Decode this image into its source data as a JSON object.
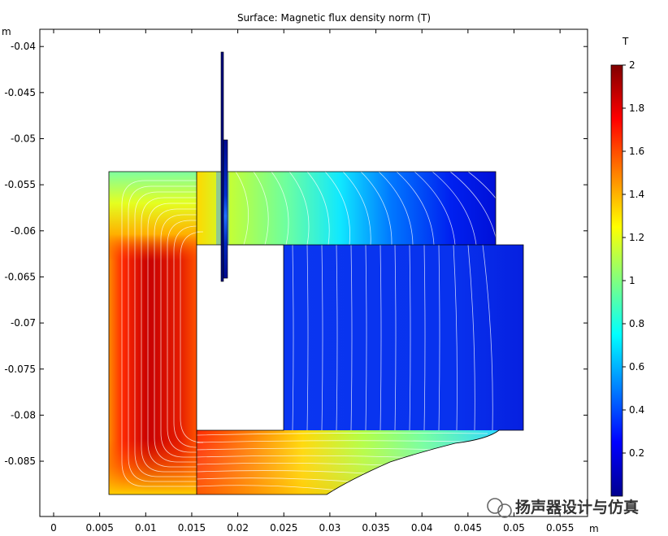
{
  "chart_data": {
    "type": "heatmap",
    "title": "Surface: Magnetic flux density norm (T)",
    "x_unit": "m",
    "y_unit": "m",
    "xlim": [
      -0.0015,
      0.058
    ],
    "ylim": [
      -0.0895,
      -0.0365
    ],
    "x_ticks": [
      {
        "value": 0,
        "label": "0"
      },
      {
        "value": 0.005,
        "label": "0.005"
      },
      {
        "value": 0.01,
        "label": "0.01"
      },
      {
        "value": 0.015,
        "label": "0.015"
      },
      {
        "value": 0.02,
        "label": "0.02"
      },
      {
        "value": 0.025,
        "label": "0.025"
      },
      {
        "value": 0.03,
        "label": "0.03"
      },
      {
        "value": 0.035,
        "label": "0.035"
      },
      {
        "value": 0.04,
        "label": "0.04"
      },
      {
        "value": 0.045,
        "label": "0.045"
      },
      {
        "value": 0.05,
        "label": "0.05"
      },
      {
        "value": 0.055,
        "label": "0.055"
      }
    ],
    "y_ticks": [
      {
        "value": -0.04,
        "label": "-0.04"
      },
      {
        "value": -0.045,
        "label": "-0.045"
      },
      {
        "value": -0.05,
        "label": "-0.05"
      },
      {
        "value": -0.055,
        "label": "-0.055"
      },
      {
        "value": -0.06,
        "label": "-0.06"
      },
      {
        "value": -0.065,
        "label": "-0.065"
      },
      {
        "value": -0.07,
        "label": "-0.07"
      },
      {
        "value": -0.075,
        "label": "-0.075"
      },
      {
        "value": -0.08,
        "label": "-0.08"
      },
      {
        "value": -0.085,
        "label": "-0.085"
      }
    ],
    "colorbar": {
      "unit": "T",
      "range": [
        0,
        2
      ],
      "ticks": [
        {
          "value": 2,
          "label": "2"
        },
        {
          "value": 1.8,
          "label": "1.8"
        },
        {
          "value": 1.6,
          "label": "1.6"
        },
        {
          "value": 1.4,
          "label": "1.4"
        },
        {
          "value": 1.2,
          "label": "1.2"
        },
        {
          "value": 1,
          "label": "1"
        },
        {
          "value": 0.8,
          "label": "0.8"
        },
        {
          "value": 0.6,
          "label": "0.6"
        },
        {
          "value": 0.4,
          "label": "0.4"
        },
        {
          "value": 0.2,
          "label": "0.2"
        }
      ],
      "colormap": "rainbow"
    },
    "regions": [
      {
        "name": "pole-outer-wall",
        "x": [
          0.006,
          0.0155
        ],
        "y": [
          -0.087,
          -0.052
        ],
        "b_range": [
          1.2,
          2.0
        ]
      },
      {
        "name": "top-plate",
        "x": [
          0.0155,
          0.048
        ],
        "y": [
          -0.06,
          -0.052
        ],
        "b_range": [
          0.1,
          1.1
        ]
      },
      {
        "name": "magnet",
        "x": [
          0.025,
          0.051
        ],
        "y": [
          -0.08,
          -0.06
        ],
        "b_range": [
          0.1,
          0.2
        ]
      },
      {
        "name": "bottom-plate",
        "x": [
          0.0155,
          0.048
        ],
        "y": [
          -0.087,
          -0.08
        ],
        "b_range": [
          0.6,
          1.8
        ]
      },
      {
        "name": "voice-coil",
        "x": [
          0.018,
          0.0188
        ],
        "y": [
          -0.064,
          -0.039
        ],
        "b_range": [
          0.05,
          0.3
        ]
      }
    ]
  },
  "watermark": "扬声器设计与仿真"
}
